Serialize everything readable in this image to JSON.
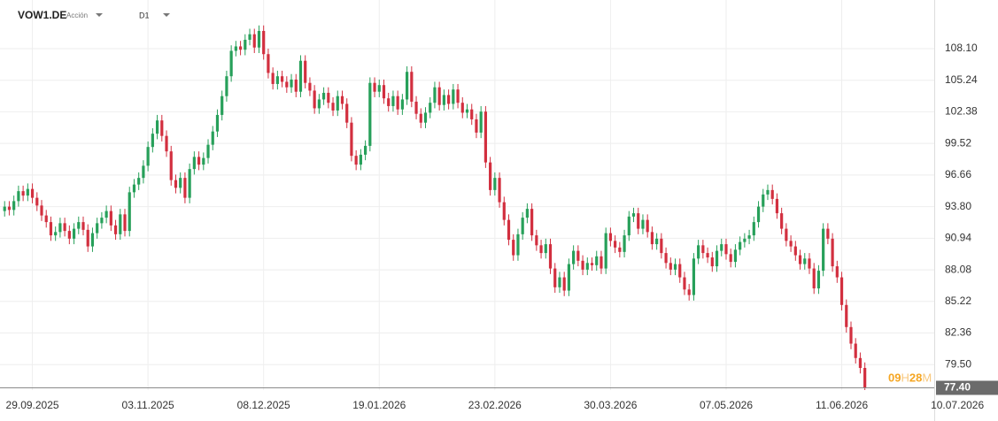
{
  "chart_data": {
    "type": "candlestick",
    "symbol": "VOW1.DE",
    "instrument_type": "Acción",
    "timeframe": "D1",
    "up_color": "#27a05a",
    "down_color": "#d22f3f",
    "grid": true,
    "xlim": [
      -1,
      201
    ],
    "ylim": [
      77.2,
      111.7
    ],
    "xticks": [
      {
        "value": 6,
        "label": "29.09.2025"
      },
      {
        "value": 31,
        "label": "03.11.2025"
      },
      {
        "value": 56,
        "label": "08.12.2025"
      },
      {
        "value": 81,
        "label": "19.01.2026"
      },
      {
        "value": 106,
        "label": "23.02.2026"
      },
      {
        "value": 131,
        "label": "30.03.2026"
      },
      {
        "value": 156,
        "label": "07.05.2026"
      },
      {
        "value": 181,
        "label": "11.06.2026"
      },
      {
        "value": 206,
        "label": "10.07.2026"
      }
    ],
    "yticks": [
      {
        "value": 79.5,
        "label": "79.50"
      },
      82.36,
      85.22,
      88.08,
      90.94,
      {
        "value": 93.8,
        "label": "93.80"
      },
      96.66,
      99.52,
      102.38,
      105.24,
      {
        "value": 108.1,
        "label": "108.10"
      }
    ],
    "last_price": {
      "value": 77.4,
      "label": "77.40"
    },
    "countdown": {
      "hours": "09",
      "hours_unit": "H",
      "minutes": "28",
      "minutes_unit": "M"
    },
    "open": [
      93.4,
      93.8,
      93.5,
      94.3,
      95.2,
      94.8,
      95.4,
      94.6,
      93.9,
      93.0,
      92.4,
      91.2,
      91.5,
      92.3,
      91.6,
      90.9,
      91.8,
      92.4,
      91.7,
      90.2,
      91.4,
      92.3,
      92.8,
      93.4,
      92.1,
      91.3,
      93.1,
      91.6,
      95.1,
      95.8,
      96.4,
      97.5,
      99.2,
      100.4,
      101.6,
      100.2,
      98.8,
      96.2,
      95.5,
      96.4,
      94.6,
      97.2,
      98.3,
      97.6,
      98.2,
      99.4,
      100.6,
      102.1,
      103.8,
      105.6,
      107.9,
      108.3,
      108.0,
      108.9,
      109.4,
      108.2,
      109.7,
      107.6,
      105.9,
      104.9,
      105.6,
      105.1,
      104.6,
      105.3,
      104.2,
      107.0,
      105.0,
      104.3,
      102.7,
      103.5,
      104.1,
      103.2,
      102.5,
      103.8,
      103.1,
      101.4,
      98.4,
      97.6,
      98.5,
      99.3,
      105.0,
      104.2,
      104.8,
      103.6,
      102.9,
      103.8,
      102.6,
      103.5,
      106.0,
      103.3,
      102.2,
      101.4,
      102.3,
      103.2,
      104.6,
      103.0,
      103.9,
      103.1,
      104.4,
      103.2,
      102.3,
      102.6,
      101.7,
      100.5,
      102.4,
      97.8,
      95.3,
      96.4,
      94.2,
      92.6,
      90.8,
      89.4,
      91.3,
      92.8,
      93.6,
      91.2,
      90.3,
      89.6,
      90.4,
      88.2,
      86.5,
      87.4,
      86.2,
      88.6,
      89.8,
      88.9,
      88.1,
      88.7,
      88.5,
      89.3,
      88.2,
      91.4,
      90.7,
      90.1,
      89.7,
      91.2,
      92.9,
      93.2,
      91.8,
      92.6,
      91.5,
      90.4,
      90.9,
      89.6,
      88.7,
      88.1,
      88.6,
      87.4,
      86.3,
      85.8,
      89.1,
      90.3,
      89.6,
      89.2,
      88.4,
      89.8,
      90.4,
      89.5,
      88.8,
      89.9,
      90.6,
      90.9,
      91.2,
      92.4,
      93.8,
      94.9,
      95.3,
      94.5,
      93.2,
      91.8,
      90.7,
      90.2,
      89.4,
      88.6,
      89.1,
      88.2,
      86.4,
      88.0,
      91.8,
      90.9,
      88.4,
      87.4,
      84.9,
      82.9,
      81.4,
      80.1,
      79.2
    ],
    "high": [
      94.3,
      94.3,
      94.8,
      95.7,
      95.7,
      95.9,
      95.9,
      95.1,
      94.4,
      93.5,
      92.9,
      92.0,
      92.8,
      92.8,
      92.1,
      92.3,
      92.9,
      92.9,
      92.2,
      91.9,
      92.8,
      93.3,
      93.9,
      93.9,
      92.6,
      93.6,
      93.6,
      95.6,
      96.3,
      96.9,
      98.0,
      99.7,
      100.9,
      102.1,
      102.1,
      100.7,
      99.3,
      96.7,
      96.9,
      96.9,
      97.7,
      98.8,
      98.8,
      98.7,
      99.9,
      101.1,
      102.6,
      104.3,
      106.1,
      108.4,
      108.8,
      108.8,
      109.4,
      109.9,
      109.9,
      110.2,
      110.2,
      108.1,
      106.4,
      106.1,
      106.1,
      105.6,
      105.8,
      105.8,
      107.5,
      107.5,
      105.5,
      104.8,
      104.0,
      104.6,
      104.6,
      103.7,
      104.3,
      104.3,
      103.6,
      101.9,
      98.9,
      99.0,
      99.8,
      105.5,
      105.5,
      105.3,
      105.3,
      104.1,
      104.3,
      104.3,
      104.0,
      106.5,
      106.5,
      103.8,
      102.7,
      102.8,
      103.7,
      105.1,
      105.1,
      104.4,
      104.4,
      104.9,
      104.9,
      103.7,
      103.1,
      103.1,
      102.2,
      102.9,
      102.9,
      98.3,
      96.9,
      96.9,
      94.7,
      93.1,
      91.3,
      91.8,
      93.3,
      94.1,
      94.1,
      91.7,
      90.8,
      90.9,
      90.9,
      88.7,
      87.9,
      87.9,
      89.1,
      90.3,
      90.3,
      89.4,
      89.2,
      89.2,
      89.8,
      89.8,
      91.9,
      91.9,
      91.2,
      90.6,
      91.7,
      93.4,
      93.7,
      93.7,
      93.1,
      93.1,
      92.0,
      91.4,
      91.4,
      90.1,
      89.2,
      89.1,
      89.1,
      87.9,
      86.8,
      89.6,
      90.8,
      90.8,
      90.1,
      89.7,
      90.3,
      90.9,
      90.9,
      90.0,
      90.4,
      91.1,
      91.4,
      91.7,
      92.9,
      94.3,
      95.4,
      95.8,
      95.8,
      95.0,
      93.7,
      92.3,
      91.2,
      90.7,
      89.9,
      89.6,
      89.6,
      88.7,
      88.5,
      92.3,
      92.3,
      91.4,
      88.9,
      87.9,
      85.4,
      83.4,
      81.9,
      80.6,
      79.7
    ],
    "low": [
      92.9,
      93.0,
      93.0,
      93.8,
      94.3,
      94.3,
      94.1,
      93.4,
      92.5,
      91.9,
      90.7,
      90.7,
      91.0,
      91.1,
      90.4,
      90.4,
      91.3,
      91.2,
      89.7,
      89.7,
      90.9,
      91.8,
      92.3,
      91.6,
      90.8,
      90.8,
      91.1,
      91.1,
      94.6,
      95.3,
      95.9,
      97.0,
      98.7,
      99.9,
      99.7,
      98.3,
      95.7,
      95.0,
      95.0,
      94.1,
      94.1,
      96.7,
      97.1,
      97.1,
      97.7,
      98.9,
      100.1,
      101.6,
      103.3,
      105.1,
      107.4,
      107.5,
      107.5,
      108.4,
      107.7,
      107.7,
      107.1,
      105.4,
      104.4,
      104.4,
      104.6,
      104.1,
      104.1,
      103.7,
      103.7,
      104.5,
      103.8,
      102.2,
      102.2,
      103.0,
      102.7,
      102.0,
      102.0,
      102.6,
      100.9,
      97.9,
      97.1,
      97.1,
      98.0,
      98.8,
      103.7,
      103.7,
      103.1,
      102.4,
      102.4,
      102.1,
      102.1,
      103.0,
      102.8,
      101.7,
      100.9,
      100.9,
      101.8,
      102.7,
      102.5,
      102.5,
      102.6,
      102.6,
      102.7,
      101.8,
      101.8,
      101.2,
      100.0,
      100.0,
      97.3,
      94.8,
      94.8,
      93.7,
      92.1,
      90.3,
      88.9,
      88.9,
      90.8,
      92.3,
      90.7,
      89.8,
      89.1,
      89.1,
      87.7,
      86.0,
      86.0,
      85.7,
      85.7,
      88.1,
      88.4,
      87.6,
      87.6,
      88.0,
      88.0,
      87.7,
      87.7,
      90.2,
      89.6,
      89.2,
      89.2,
      90.7,
      92.4,
      91.3,
      91.3,
      91.0,
      89.9,
      89.9,
      89.1,
      88.2,
      87.6,
      87.6,
      86.9,
      85.8,
      85.3,
      85.3,
      88.6,
      89.1,
      88.7,
      87.9,
      87.9,
      89.3,
      89.0,
      88.3,
      88.3,
      89.4,
      90.1,
      90.4,
      90.7,
      91.9,
      93.3,
      94.4,
      94.0,
      92.7,
      91.3,
      90.2,
      89.7,
      88.9,
      88.1,
      88.1,
      87.7,
      85.9,
      85.9,
      87.5,
      90.4,
      87.9,
      86.9,
      84.4,
      82.4,
      80.9,
      79.6,
      78.7,
      77.2
    ],
    "close": [
      93.8,
      93.5,
      94.3,
      95.2,
      94.8,
      95.4,
      94.6,
      93.9,
      93.0,
      92.4,
      91.2,
      91.5,
      92.3,
      91.6,
      90.9,
      91.8,
      92.4,
      91.7,
      90.2,
      91.4,
      92.3,
      92.8,
      93.4,
      92.1,
      91.3,
      93.1,
      91.6,
      95.1,
      95.8,
      96.4,
      97.5,
      99.2,
      100.4,
      101.6,
      100.2,
      98.8,
      96.2,
      95.5,
      96.4,
      94.6,
      97.2,
      98.3,
      97.6,
      98.2,
      99.4,
      100.6,
      102.1,
      103.8,
      105.6,
      107.9,
      108.3,
      108.0,
      108.9,
      109.4,
      108.2,
      109.7,
      107.6,
      105.9,
      104.9,
      105.6,
      105.1,
      104.6,
      105.3,
      104.2,
      107.0,
      105.0,
      104.3,
      102.7,
      103.5,
      104.1,
      103.2,
      102.5,
      103.8,
      103.1,
      101.4,
      98.4,
      97.6,
      98.5,
      99.3,
      105.0,
      104.2,
      104.8,
      103.6,
      102.9,
      103.8,
      102.6,
      103.5,
      106.0,
      103.3,
      102.2,
      101.4,
      102.3,
      103.2,
      104.6,
      103.0,
      103.9,
      103.1,
      104.4,
      103.2,
      102.3,
      102.6,
      101.7,
      100.5,
      102.4,
      97.8,
      95.3,
      96.4,
      94.2,
      92.6,
      90.8,
      89.4,
      91.3,
      92.8,
      93.6,
      91.2,
      90.3,
      89.6,
      90.4,
      88.2,
      86.5,
      87.4,
      86.2,
      88.6,
      89.8,
      88.9,
      88.1,
      88.7,
      88.5,
      89.3,
      88.2,
      91.4,
      90.7,
      90.1,
      89.7,
      91.2,
      92.9,
      93.2,
      91.8,
      92.6,
      91.5,
      90.4,
      90.9,
      89.6,
      88.7,
      88.1,
      88.6,
      87.4,
      86.3,
      85.8,
      89.1,
      90.3,
      89.6,
      89.2,
      88.4,
      89.8,
      90.4,
      89.5,
      88.8,
      89.9,
      90.6,
      90.9,
      91.2,
      92.4,
      93.8,
      94.9,
      95.3,
      94.5,
      93.2,
      91.8,
      90.7,
      90.2,
      89.4,
      88.6,
      89.1,
      88.2,
      86.4,
      88.0,
      91.8,
      90.9,
      88.4,
      87.4,
      84.9,
      82.9,
      81.4,
      80.1,
      79.2,
      77.4
    ]
  }
}
